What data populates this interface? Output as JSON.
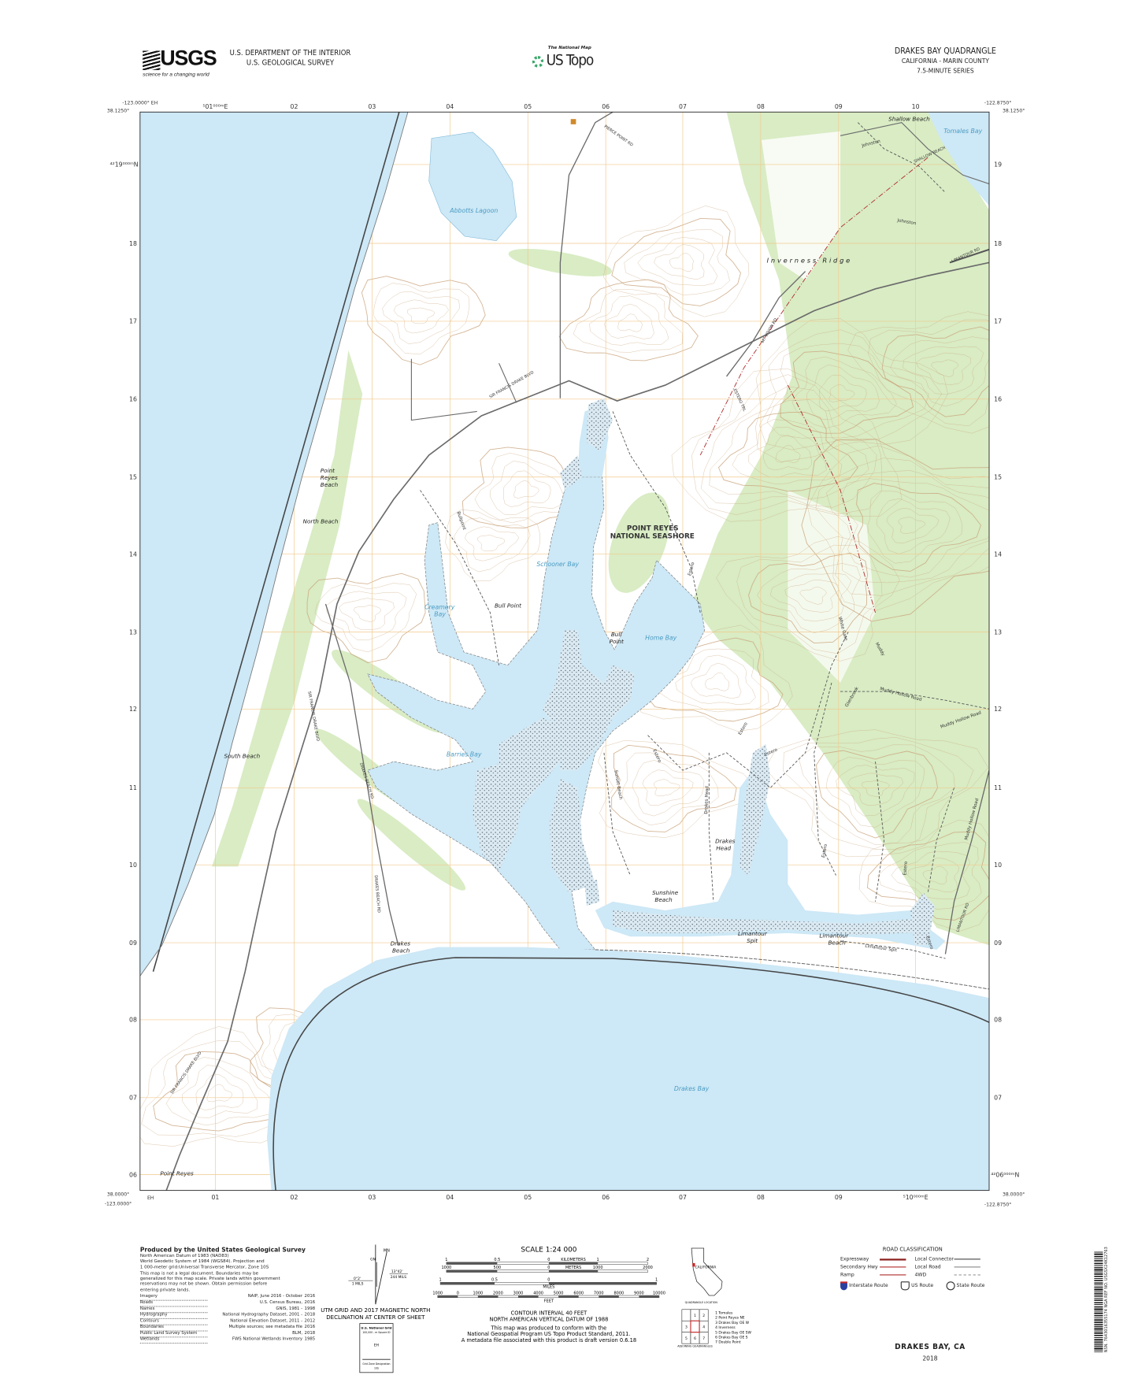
{
  "header": {
    "agency_logo": "USGS",
    "agency_tagline": "science for a changing world",
    "dept_line1": "U.S. DEPARTMENT OF THE INTERIOR",
    "dept_line2": "U.S. GEOLOGICAL SURVEY",
    "product_small": "The National Map",
    "product_name": "US Topo",
    "quad_title": "DRAKES BAY QUADRANGLE",
    "quad_state_county": "CALIFORNIA - MARIN COUNTY",
    "quad_series": "7.5-MINUTE SERIES"
  },
  "frame": {
    "nw_lon": "-123.0000° EH",
    "nw_lat": "38.1250°",
    "ne_lon": "-122.8750°",
    "ne_lat": "38.1250°",
    "sw_lat": "38.0000°",
    "sw_lon": "-123.0000°",
    "sw_zone": "EH",
    "se_lat": "38.0000°",
    "se_lon": "-122.8750°",
    "top_ticks": [
      "⁵01⁰⁰⁰ᵐE",
      "02",
      "03",
      "04",
      "05",
      "06",
      "07",
      "08",
      "09",
      "10"
    ],
    "bottom_ticks": [
      "01",
      "02",
      "03",
      "04",
      "05",
      "06",
      "07",
      "08",
      "09",
      "⁵10⁰⁰⁰ᵐE"
    ],
    "left_ticks": [
      "⁴²19⁰⁰⁰ᵐN",
      "18",
      "17",
      "16",
      "15",
      "14",
      "13",
      "12",
      "11",
      "10",
      "09",
      "08",
      "07",
      "06"
    ],
    "right_ticks": [
      "19",
      "18",
      "17",
      "16",
      "15",
      "14",
      "13",
      "12",
      "11",
      "10",
      "09",
      "08",
      "07",
      "⁴²06⁰⁰⁰ᵐN"
    ]
  },
  "colors": {
    "water": "#cde8f6",
    "vegetation": "#d9ecc4",
    "grid": "#f1c98c",
    "contour": "#c9a47c",
    "road": "#6b6b6b",
    "boundary": "#444444",
    "accent_red": "#b02a2a"
  },
  "map_labels": {
    "abbotts_lagoon": "Abbotts Lagoon",
    "shallow_beach": "Shallow Beach",
    "tomales_bay": "Tomales Bay",
    "inverness_ridge": "Inverness Ridge",
    "johnston_1": "Johnston",
    "johnston_2": "Johnston",
    "shallow_beach_rd": "SHALLOW BEACH",
    "pierce_point_rd": "PIERCE POINT RD",
    "sfd_blvd_1": "SIR FRANCIS DRAKE BLVD",
    "sfd_blvd_2": "SIR FRANCIS DRAKE BLVD",
    "sfd_blvd_3": "SIR FRANCIS DRAKE BLVD",
    "mt_vision_rd": "MT VISION RD",
    "estero_trl": "ESTERO TRL",
    "point_reyes_beach": [
      "Point",
      "Reyes",
      "Beach"
    ],
    "north_beach": "North Beach",
    "seashore": [
      "POINT REYES",
      "NATIONAL SEASHORE"
    ],
    "schooner_bay": "Schooner Bay",
    "creamery_bay": [
      "Creamery",
      "Bay"
    ],
    "bull_point_w": "Bull Point",
    "bull_point_e": [
      "Bull",
      "Point"
    ],
    "home_bay": "Home Bay",
    "bullpoint_trail": "Bullpoint",
    "barries_bay": "Barries Bay",
    "south_beach": "South Beach",
    "drakes_beach_rd_1": "DRAKES BEACH RD",
    "drakes_beach_rd_2": "DRAKES BEACH RD",
    "estero_1": "Estero",
    "estero_2": "Estero",
    "estero_3": "Estero",
    "estero_4": "Estero",
    "estero_5": "Estero",
    "estero_6": "Estero",
    "estero_7": "Estero",
    "muddy_hollow_1": "Muddy Hollow Road",
    "muddy_hollow_2": "Muddy Hollow Road",
    "muddy_hollow_3": "Muddy Hollow Road",
    "muddy": "Muddy",
    "white_gate": "White Gate",
    "glenbrook": "Glenbrook",
    "sunset_beach": "Sunset Beach",
    "drakes_head_trail": "Drakes Head",
    "drakes_head": [
      "Drakes",
      "Head"
    ],
    "sunshine_beach": [
      "Sunshine",
      "Beach"
    ],
    "limantour_spit": [
      "Limantour",
      "Spit"
    ],
    "limantour_beach": [
      "Limantour",
      "Beach"
    ],
    "limantour_spit_trail": "Limantour Spit",
    "limantour_rd": "LIMANTOUR RD",
    "drakes_beach": [
      "Drakes",
      "Beach"
    ],
    "drakes_bay": "Drakes Bay",
    "point_reyes": "Point Reyes"
  },
  "footer": {
    "producer": "Produced by the United States Geological Survey",
    "datum_lines": [
      "North American Datum of 1983 (NAD83)",
      "World Geodetic System of 1984 (WGS84).  Projection and",
      "1 000-meter grid:Universal Transverse Mercator, Zone 10S"
    ],
    "disclaimer": [
      "This map is not a legal document. Boundaries may be",
      "generalized for this map scale. Private lands within government",
      "reservations may not be shown. Obtain permission before",
      "entering private lands."
    ],
    "credits": [
      {
        "item": "Imagery",
        "source": "NAIP, June 2016 - October",
        "year": "2016"
      },
      {
        "item": "Roads",
        "source": "U.S. Census Bureau,",
        "year": "2016"
      },
      {
        "item": "Names",
        "source": "GNIS, 1981 -",
        "year": "1998"
      },
      {
        "item": "Hydrography",
        "source": "National Hydrography Dataset, 2001 -",
        "year": "2018"
      },
      {
        "item": "Contours",
        "source": "National Elevation Dataset, 2011 -",
        "year": "2012"
      },
      {
        "item": "Boundaries",
        "source": "Multiple sources; see metadata file",
        "year": "2016"
      },
      {
        "item": "Public Land Survey System",
        "source": "BLM,",
        "year": "2018"
      },
      {
        "item": "Wetlands",
        "source": "FWS National Wetlands Inventory",
        "year": "1985"
      }
    ],
    "declination": {
      "mn_label": "MN",
      "gn_label": "GN",
      "grid_angle": "0°2'",
      "grid_mils": "1 MILS",
      "mag_angle": "13°42'",
      "mag_mils": "244 MILS",
      "caption": [
        "UTM GRID AND 2017 MAGNETIC NORTH",
        "DECLINATION AT CENTER OF SHEET"
      ]
    },
    "usng": {
      "title": "U.S. National Grid",
      "subtitle": "100,000 - m Square ID",
      "square": "EH",
      "zone_label": "Grid Zone Designation",
      "zone": "10S"
    },
    "scale": {
      "title": "SCALE 1:24 000",
      "km_ticks": [
        "1",
        "0.5",
        "0",
        "1",
        "2"
      ],
      "km_unit": "KILOMETERS",
      "m_ticks": [
        "1000",
        "500",
        "0",
        "1000",
        "2000"
      ],
      "m_unit": "METERS",
      "mi_ticks": [
        "1",
        "0.5",
        "0",
        "1"
      ],
      "mi_unit": "MILES",
      "ft_ticks": [
        "1000",
        "0",
        "1000",
        "2000",
        "3000",
        "4000",
        "5000",
        "6000",
        "7000",
        "8000",
        "9000",
        "10000"
      ],
      "ft_unit": "FEET"
    },
    "contour_note": [
      "CONTOUR INTERVAL 40 FEET",
      "NORTH AMERICAN VERTICAL DATUM OF 1988"
    ],
    "standard_note": [
      "This map was produced to conform with the",
      "National Geospatial Program US Topo Product Standard, 2011.",
      "A metadata file associated with this product is draft version 0.6.18"
    ],
    "locator": {
      "state": "CALIFORNIA",
      "caption": "QUADRANGLE LOCATION"
    },
    "adjoining": {
      "cells": [
        "",
        "1",
        "2",
        "3",
        "",
        "4",
        "5",
        "6",
        "7"
      ],
      "caption": "ADJOINING QUADRANGLES",
      "list": [
        "1 Tomales",
        "2 Point Reyes NE",
        "3 Drakes Bay OE W",
        "4 Inverness",
        "5 Drakes Bay OE SW",
        "6 Drakes Bay OE S",
        "7 Double Point"
      ]
    },
    "roads": {
      "title": "ROAD CLASSIFICATION",
      "left": [
        "Expressway",
        "Secondary Hwy",
        "Ramp"
      ],
      "right": [
        "Local Connector",
        "Local Road",
        "4WD"
      ],
      "shields": [
        "Interstate Route",
        "US Route",
        "State Route"
      ]
    },
    "sheet_name": "DRAKES BAY, CA",
    "sheet_year": "2018",
    "barcode_text": "NSN. 7643016355174 NGA REF NO. USGSX24K12763"
  }
}
